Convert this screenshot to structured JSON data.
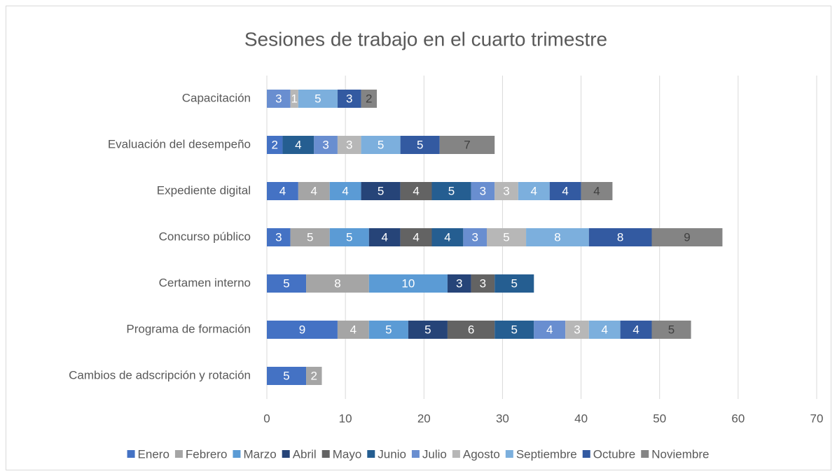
{
  "chart_data": {
    "type": "stacked_bar_horizontal",
    "title": "Sesiones de trabajo en el cuarto trimestre",
    "categories": [
      "Capacitación",
      "Evaluación del desempeño",
      "Expediente digital",
      "Concurso público",
      "Certamen interno",
      "Programa de formación",
      "Cambios de adscripción y rotación"
    ],
    "series": [
      {
        "name": "Enero",
        "color": "#4472c4",
        "values": [
          null,
          2,
          4,
          3,
          5,
          9,
          5
        ]
      },
      {
        "name": "Febrero",
        "color": "#a5a5a5",
        "values": [
          null,
          null,
          4,
          5,
          8,
          4,
          2
        ]
      },
      {
        "name": "Marzo",
        "color": "#5b9bd5",
        "values": [
          null,
          null,
          4,
          5,
          10,
          5,
          null
        ]
      },
      {
        "name": "Abril",
        "color": "#264478",
        "values": [
          null,
          null,
          5,
          4,
          3,
          5,
          null
        ]
      },
      {
        "name": "Mayo",
        "color": "#636363",
        "values": [
          null,
          null,
          4,
          4,
          3,
          6,
          null
        ]
      },
      {
        "name": "Junio",
        "color": "#255e91",
        "values": [
          null,
          4,
          5,
          4,
          5,
          5,
          null
        ]
      },
      {
        "name": "Julio",
        "color": "#698ed0",
        "values": [
          3,
          3,
          3,
          3,
          null,
          4,
          null
        ]
      },
      {
        "name": "Agosto",
        "color": "#b7b7b7",
        "values": [
          1,
          3,
          3,
          5,
          null,
          3,
          null
        ]
      },
      {
        "name": "Septiembre",
        "color": "#7cafdd",
        "values": [
          5,
          5,
          4,
          8,
          null,
          4,
          null
        ]
      },
      {
        "name": "Octubre",
        "color": "#335aa1",
        "values": [
          3,
          5,
          4,
          8,
          null,
          4,
          null
        ]
      },
      {
        "name": "Noviembre",
        "color": "#848484",
        "values": [
          2,
          7,
          4,
          9,
          null,
          5,
          null
        ]
      }
    ],
    "xlim": [
      0,
      70
    ],
    "xticks": [
      0,
      10,
      20,
      30,
      40,
      50,
      60,
      70
    ],
    "grid": true,
    "legend": "bottom"
  }
}
